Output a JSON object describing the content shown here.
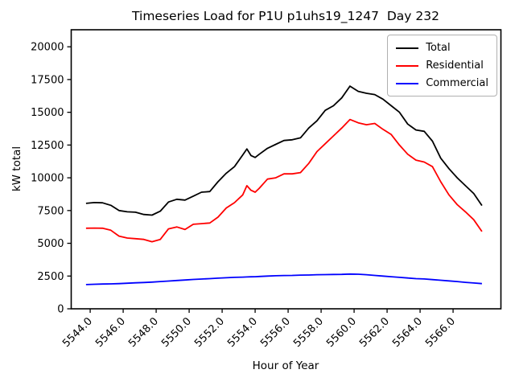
{
  "chart_data": {
    "type": "line",
    "title": "Timeseries Load for P1U p1uhs19_1247  Day 232",
    "xlabel": "Hour of Year",
    "ylabel": "kW total",
    "grid": false,
    "legend_position": "upper right",
    "xlim": [
      5542.85,
      5568.9
    ],
    "ylim": [
      0,
      21300
    ],
    "x_ticks": [
      5544,
      5546,
      5548,
      5550,
      5552,
      5554,
      5556,
      5558,
      5560,
      5562,
      5564,
      5566
    ],
    "x_tick_labels": [
      "5544.0",
      "5546.0",
      "5548.0",
      "5550.0",
      "5552.0",
      "5554.0",
      "5556.0",
      "5558.0",
      "5560.0",
      "5562.0",
      "5564.0",
      "5566.0"
    ],
    "x_tick_rotation": 45,
    "y_ticks": [
      0,
      2500,
      5000,
      7500,
      10000,
      12500,
      15000,
      17500,
      20000
    ],
    "y_tick_labels": [
      "0",
      "2500",
      "5000",
      "7500",
      "10000",
      "12500",
      "15000",
      "17500",
      "20000"
    ],
    "x": [
      5543.75,
      5544.25,
      5544.75,
      5545.25,
      5545.75,
      5546.25,
      5546.75,
      5547.25,
      5547.75,
      5548.25,
      5548.75,
      5549.25,
      5549.75,
      5550.25,
      5550.75,
      5551.25,
      5551.75,
      5552.25,
      5552.75,
      5553.25,
      5553.5,
      5553.75,
      5554.0,
      5554.25,
      5554.75,
      5555.25,
      5555.75,
      5556.25,
      5556.75,
      5557.25,
      5557.75,
      5558.25,
      5558.75,
      5559.25,
      5559.75,
      5560.25,
      5560.75,
      5561.25,
      5561.75,
      5562.25,
      5562.75,
      5563.25,
      5563.75,
      5564.25,
      5564.75,
      5565.25,
      5565.75,
      5566.25,
      5566.75,
      5567.25,
      5567.75
    ],
    "series": [
      {
        "name": "Total",
        "color": "#000000",
        "values": [
          8050,
          8110,
          8090,
          7900,
          7500,
          7400,
          7370,
          7200,
          7150,
          7450,
          8150,
          8360,
          8300,
          8600,
          8900,
          8950,
          9700,
          10350,
          10850,
          11750,
          12200,
          11700,
          11550,
          11800,
          12250,
          12550,
          12850,
          12900,
          13050,
          13800,
          14350,
          15150,
          15500,
          16100,
          17000,
          16600,
          16450,
          16350,
          16000,
          15500,
          15000,
          14100,
          13650,
          13550,
          12800,
          11500,
          10700,
          10000,
          9400,
          8800,
          7880
        ]
      },
      {
        "name": "Residential",
        "color": "#ff0000",
        "values": [
          6150,
          6160,
          6150,
          6000,
          5550,
          5400,
          5350,
          5300,
          5120,
          5300,
          6100,
          6250,
          6050,
          6450,
          6500,
          6550,
          7000,
          7700,
          8100,
          8700,
          9400,
          9050,
          8900,
          9200,
          9900,
          10000,
          10300,
          10300,
          10400,
          11100,
          12000,
          12600,
          13200,
          13800,
          14450,
          14200,
          14050,
          14150,
          13700,
          13300,
          12500,
          11800,
          11350,
          11200,
          10850,
          9700,
          8700,
          7950,
          7400,
          6800,
          5900
        ]
      },
      {
        "name": "Commercial",
        "color": "#0000ff",
        "values": [
          1850,
          1870,
          1890,
          1900,
          1920,
          1950,
          1980,
          2010,
          2040,
          2080,
          2120,
          2160,
          2200,
          2240,
          2270,
          2300,
          2340,
          2370,
          2400,
          2420,
          2430,
          2440,
          2450,
          2470,
          2500,
          2520,
          2540,
          2550,
          2570,
          2580,
          2600,
          2610,
          2620,
          2630,
          2650,
          2640,
          2600,
          2550,
          2500,
          2450,
          2400,
          2350,
          2300,
          2280,
          2230,
          2180,
          2130,
          2080,
          2020,
          1970,
          1920
        ]
      }
    ]
  }
}
